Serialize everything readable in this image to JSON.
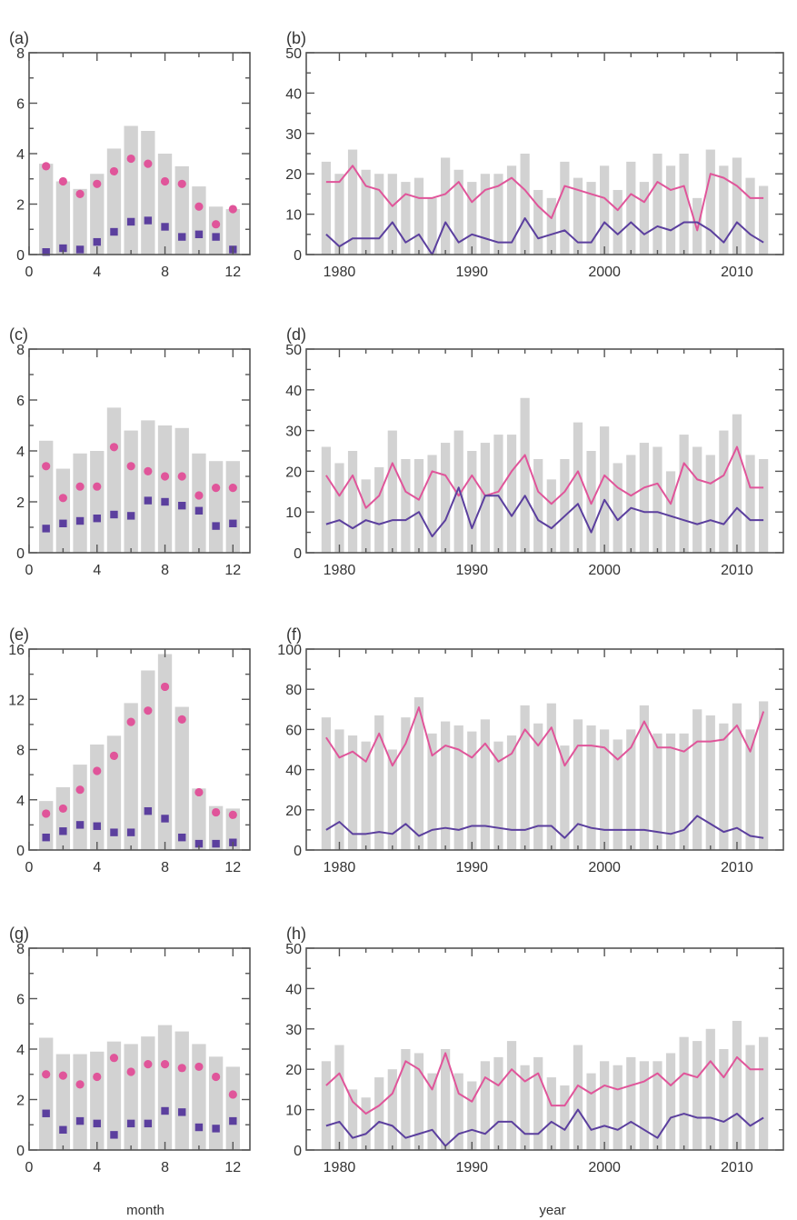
{
  "colors": {
    "bar": "#d2d2d2",
    "pink": "#e0559a",
    "purple": "#5b3f9e",
    "axis": "#555555",
    "text": "#333333"
  },
  "x_titles": {
    "month": "month",
    "year": "year"
  },
  "chart_data": [
    {
      "panel": "(a)",
      "type": "bar",
      "xticks": [
        0,
        4,
        8,
        12
      ],
      "xlim": [
        0,
        13
      ],
      "yticks": [
        0,
        2,
        4,
        6,
        8
      ],
      "ylim": [
        0,
        8
      ],
      "categories": [
        1,
        2,
        3,
        4,
        5,
        6,
        7,
        8,
        9,
        10,
        11,
        12
      ],
      "bars": [
        3.6,
        2.9,
        2.6,
        3.2,
        4.2,
        5.1,
        4.9,
        4.0,
        3.5,
        2.7,
        1.9,
        1.8
      ],
      "series": [
        {
          "marker": "circle",
          "color": "#e0559a",
          "values": [
            3.5,
            2.9,
            2.4,
            2.8,
            3.3,
            3.8,
            3.6,
            2.9,
            2.8,
            1.9,
            1.2,
            1.8
          ]
        },
        {
          "marker": "square",
          "color": "#5b3f9e",
          "values": [
            0.1,
            0.25,
            0.2,
            0.5,
            0.9,
            1.3,
            1.35,
            1.1,
            0.7,
            0.8,
            0.7,
            0.2
          ]
        }
      ]
    },
    {
      "panel": "(b)",
      "type": "bar",
      "xticks": [
        1980,
        1990,
        2000,
        2010
      ],
      "xlim": [
        1977.5,
        2013.5
      ],
      "yticks": [
        0,
        10,
        20,
        30,
        40,
        50
      ],
      "ylim": [
        0,
        50
      ],
      "x": [
        1979,
        1980,
        1981,
        1982,
        1983,
        1984,
        1985,
        1986,
        1987,
        1988,
        1989,
        1990,
        1991,
        1992,
        1993,
        1994,
        1995,
        1996,
        1997,
        1998,
        1999,
        2000,
        2001,
        2002,
        2003,
        2004,
        2005,
        2006,
        2007,
        2008,
        2009,
        2010,
        2011,
        2012
      ],
      "bars": [
        23,
        20,
        26,
        21,
        20,
        20,
        18,
        19,
        14,
        24,
        21,
        18,
        20,
        20,
        22,
        25,
        16,
        14,
        23,
        19,
        18,
        22,
        16,
        23,
        18,
        25,
        22,
        25,
        14,
        26,
        22,
        24,
        19,
        17
      ],
      "series": [
        {
          "marker": "line",
          "color": "#e0559a",
          "values": [
            18,
            18,
            22,
            17,
            16,
            12,
            15,
            14,
            14,
            15,
            18,
            13,
            16,
            17,
            19,
            16,
            12,
            9,
            17,
            16,
            15,
            14,
            11,
            15,
            13,
            18,
            16,
            17,
            6,
            20,
            19,
            17,
            14,
            14
          ]
        },
        {
          "marker": "line",
          "color": "#5b3f9e",
          "values": [
            5,
            2,
            4,
            4,
            4,
            8,
            3,
            5,
            0,
            8,
            3,
            5,
            4,
            3,
            3,
            9,
            4,
            5,
            6,
            3,
            3,
            8,
            5,
            8,
            5,
            7,
            6,
            8,
            8,
            6,
            3,
            8,
            5,
            3
          ]
        }
      ]
    },
    {
      "panel": "(c)",
      "type": "bar",
      "xticks": [
        0,
        4,
        8,
        12
      ],
      "xlim": [
        0,
        13
      ],
      "yticks": [
        0,
        2,
        4,
        6,
        8
      ],
      "ylim": [
        0,
        8
      ],
      "categories": [
        1,
        2,
        3,
        4,
        5,
        6,
        7,
        8,
        9,
        10,
        11,
        12
      ],
      "bars": [
        4.4,
        3.3,
        3.9,
        4.0,
        5.7,
        4.8,
        5.2,
        5.0,
        4.9,
        3.9,
        3.6,
        3.6
      ],
      "series": [
        {
          "marker": "circle",
          "color": "#e0559a",
          "values": [
            3.4,
            2.15,
            2.6,
            2.6,
            4.15,
            3.4,
            3.2,
            3.0,
            3.0,
            2.25,
            2.55,
            2.55
          ]
        },
        {
          "marker": "square",
          "color": "#5b3f9e",
          "values": [
            0.95,
            1.15,
            1.25,
            1.35,
            1.5,
            1.45,
            2.05,
            2.0,
            1.85,
            1.65,
            1.05,
            1.15
          ]
        }
      ]
    },
    {
      "panel": "(d)",
      "type": "bar",
      "xticks": [
        1980,
        1990,
        2000,
        2010
      ],
      "xlim": [
        1977.5,
        2013.5
      ],
      "yticks": [
        0,
        10,
        20,
        30,
        40,
        50
      ],
      "ylim": [
        0,
        50
      ],
      "x": [
        1979,
        1980,
        1981,
        1982,
        1983,
        1984,
        1985,
        1986,
        1987,
        1988,
        1989,
        1990,
        1991,
        1992,
        1993,
        1994,
        1995,
        1996,
        1997,
        1998,
        1999,
        2000,
        2001,
        2002,
        2003,
        2004,
        2005,
        2006,
        2007,
        2008,
        2009,
        2010,
        2011,
        2012
      ],
      "bars": [
        26,
        22,
        25,
        18,
        21,
        30,
        23,
        23,
        24,
        27,
        30,
        25,
        27,
        29,
        29,
        38,
        23,
        18,
        23,
        32,
        25,
        31,
        22,
        24,
        27,
        26,
        20,
        29,
        26,
        24,
        30,
        34,
        24,
        23
      ],
      "series": [
        {
          "marker": "line",
          "color": "#e0559a",
          "values": [
            19,
            14,
            19,
            11,
            14,
            22,
            15,
            13,
            20,
            19,
            14,
            19,
            14,
            15,
            20,
            24,
            15,
            12,
            15,
            20,
            12,
            19,
            16,
            14,
            16,
            17,
            12,
            22,
            18,
            17,
            19,
            26,
            16,
            16
          ]
        },
        {
          "marker": "line",
          "color": "#5b3f9e",
          "values": [
            7,
            8,
            6,
            8,
            7,
            8,
            8,
            10,
            4,
            8,
            16,
            6,
            14,
            14,
            9,
            14,
            8,
            6,
            9,
            12,
            5,
            13,
            8,
            11,
            10,
            10,
            9,
            8,
            7,
            8,
            7,
            11,
            8,
            8
          ]
        }
      ]
    },
    {
      "panel": "(e)",
      "type": "bar",
      "xticks": [
        0,
        4,
        8,
        12
      ],
      "xlim": [
        0,
        13
      ],
      "yticks": [
        0,
        4,
        8,
        12,
        16
      ],
      "ylim": [
        0,
        16
      ],
      "categories": [
        1,
        2,
        3,
        4,
        5,
        6,
        7,
        8,
        9,
        10,
        11,
        12
      ],
      "bars": [
        3.9,
        5.0,
        6.8,
        8.4,
        9.1,
        11.7,
        14.3,
        15.6,
        11.4,
        4.9,
        3.5,
        3.3
      ],
      "series": [
        {
          "marker": "circle",
          "color": "#e0559a",
          "values": [
            2.9,
            3.3,
            4.8,
            6.3,
            7.5,
            10.2,
            11.1,
            13.0,
            10.4,
            4.6,
            3.0,
            2.8
          ]
        },
        {
          "marker": "square",
          "color": "#5b3f9e",
          "values": [
            1.0,
            1.5,
            2.0,
            1.9,
            1.4,
            1.4,
            3.1,
            2.5,
            1.0,
            0.5,
            0.5,
            0.6
          ]
        }
      ]
    },
    {
      "panel": "(f)",
      "type": "bar",
      "xticks": [
        1980,
        1990,
        2000,
        2010
      ],
      "xlim": [
        1977.5,
        2013.5
      ],
      "yticks": [
        0,
        20,
        40,
        60,
        80,
        100
      ],
      "ylim": [
        0,
        100
      ],
      "x": [
        1979,
        1980,
        1981,
        1982,
        1983,
        1984,
        1985,
        1986,
        1987,
        1988,
        1989,
        1990,
        1991,
        1992,
        1993,
        1994,
        1995,
        1996,
        1997,
        1998,
        1999,
        2000,
        2001,
        2002,
        2003,
        2004,
        2005,
        2006,
        2007,
        2008,
        2009,
        2010,
        2011,
        2012
      ],
      "bars": [
        66,
        60,
        57,
        54,
        67,
        50,
        66,
        76,
        58,
        64,
        62,
        59,
        65,
        54,
        57,
        72,
        63,
        73,
        52,
        65,
        62,
        60,
        55,
        60,
        72,
        58,
        58,
        58,
        70,
        67,
        63,
        73,
        60,
        74
      ],
      "series": [
        {
          "marker": "line",
          "color": "#e0559a",
          "values": [
            56,
            46,
            49,
            44,
            58,
            42,
            53,
            71,
            47,
            52,
            50,
            46,
            53,
            44,
            48,
            60,
            52,
            61,
            42,
            52,
            52,
            51,
            45,
            51,
            64,
            51,
            51,
            49,
            54,
            54,
            55,
            62,
            49,
            69
          ]
        },
        {
          "marker": "line",
          "color": "#5b3f9e",
          "values": [
            10,
            14,
            8,
            8,
            9,
            8,
            13,
            7,
            10,
            11,
            10,
            12,
            12,
            11,
            10,
            10,
            12,
            12,
            6,
            13,
            11,
            10,
            10,
            10,
            10,
            9,
            8,
            10,
            17,
            13,
            9,
            11,
            7,
            6
          ]
        }
      ]
    },
    {
      "panel": "(g)",
      "type": "bar",
      "xticks": [
        0,
        4,
        8,
        12
      ],
      "xlim": [
        0,
        13
      ],
      "yticks": [
        0,
        2,
        4,
        6,
        8
      ],
      "ylim": [
        0,
        8
      ],
      "categories": [
        1,
        2,
        3,
        4,
        5,
        6,
        7,
        8,
        9,
        10,
        11,
        12
      ],
      "bars": [
        4.45,
        3.8,
        3.8,
        3.9,
        4.3,
        4.2,
        4.5,
        4.95,
        4.7,
        4.2,
        3.7,
        3.3
      ],
      "series": [
        {
          "marker": "circle",
          "color": "#e0559a",
          "values": [
            3.0,
            2.95,
            2.6,
            2.9,
            3.65,
            3.1,
            3.4,
            3.4,
            3.25,
            3.3,
            2.9,
            2.2
          ]
        },
        {
          "marker": "square",
          "color": "#5b3f9e",
          "values": [
            1.45,
            0.8,
            1.15,
            1.05,
            0.6,
            1.05,
            1.05,
            1.55,
            1.5,
            0.9,
            0.85,
            1.15
          ]
        }
      ]
    },
    {
      "panel": "(h)",
      "type": "bar",
      "xticks": [
        1980,
        1990,
        2000,
        2010
      ],
      "xlim": [
        1977.5,
        2013.5
      ],
      "yticks": [
        0,
        10,
        20,
        30,
        40,
        50
      ],
      "ylim": [
        0,
        50
      ],
      "x": [
        1979,
        1980,
        1981,
        1982,
        1983,
        1984,
        1985,
        1986,
        1987,
        1988,
        1989,
        1990,
        1991,
        1992,
        1993,
        1994,
        1995,
        1996,
        1997,
        1998,
        1999,
        2000,
        2001,
        2002,
        2003,
        2004,
        2005,
        2006,
        2007,
        2008,
        2009,
        2010,
        2011,
        2012
      ],
      "bars": [
        22,
        26,
        15,
        13,
        18,
        20,
        25,
        24,
        19,
        25,
        19,
        17,
        22,
        23,
        27,
        21,
        23,
        18,
        16,
        26,
        19,
        22,
        21,
        23,
        22,
        22,
        24,
        28,
        27,
        30,
        25,
        32,
        26,
        28
      ],
      "series": [
        {
          "marker": "line",
          "color": "#e0559a",
          "values": [
            16,
            19,
            12,
            9,
            11,
            14,
            22,
            20,
            15,
            24,
            14,
            12,
            18,
            16,
            20,
            17,
            19,
            11,
            11,
            16,
            14,
            16,
            15,
            16,
            17,
            19,
            16,
            19,
            18,
            22,
            18,
            23,
            20,
            20
          ]
        },
        {
          "marker": "line",
          "color": "#5b3f9e",
          "values": [
            6,
            7,
            3,
            4,
            7,
            6,
            3,
            4,
            5,
            1,
            4,
            5,
            4,
            7,
            7,
            4,
            4,
            7,
            5,
            10,
            5,
            6,
            5,
            7,
            5,
            3,
            8,
            9,
            8,
            8,
            7,
            9,
            6,
            8
          ]
        }
      ]
    }
  ]
}
